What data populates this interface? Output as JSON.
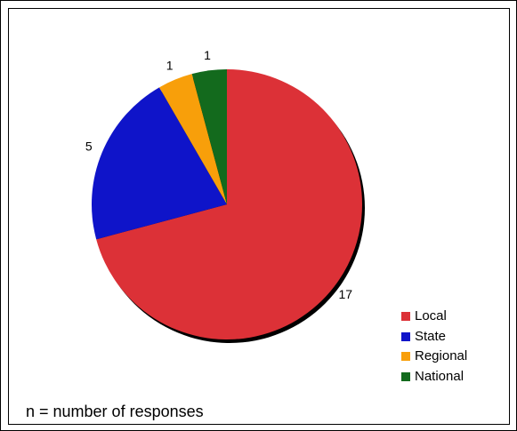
{
  "chart_data": {
    "type": "pie",
    "slices": [
      {
        "label": "Local",
        "value": 17,
        "color": "#dc3137",
        "data_label": "17"
      },
      {
        "label": "State",
        "value": 5,
        "color": "#0f14c9",
        "data_label": "5"
      },
      {
        "label": "Regional",
        "value": 1,
        "color": "#f89f0a",
        "data_label": "1"
      },
      {
        "label": "National",
        "value": 1,
        "color": "#136a1d",
        "data_label": "1"
      }
    ],
    "legend_position": "bottom-right",
    "note": "n = number of responses"
  }
}
